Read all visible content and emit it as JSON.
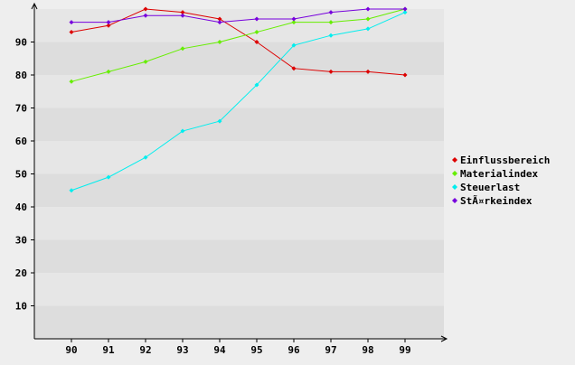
{
  "chart_data": {
    "type": "line",
    "categories": [
      "90",
      "91",
      "92",
      "93",
      "94",
      "95",
      "96",
      "97",
      "98",
      "99"
    ],
    "series": [
      {
        "name": "Einflussbereich",
        "color": "#dd0000",
        "values": [
          93,
          95,
          100,
          99,
          97,
          90,
          82,
          81,
          81,
          80
        ]
      },
      {
        "name": "Materialindex",
        "color": "#66ee00",
        "values": [
          78,
          81,
          84,
          88,
          90,
          93,
          96,
          96,
          97,
          100
        ]
      },
      {
        "name": "Steuerlast",
        "color": "#00eeee",
        "values": [
          45,
          49,
          55,
          63,
          66,
          77,
          89,
          92,
          94,
          99
        ]
      },
      {
        "name": "StÃ¤rkeindex",
        "color": "#7700dd",
        "values": [
          96,
          96,
          98,
          98,
          96,
          97,
          97,
          99,
          100,
          100
        ]
      }
    ],
    "y_ticks": [
      "10",
      "20",
      "30",
      "40",
      "50",
      "60",
      "70",
      "80",
      "90"
    ],
    "ylim": [
      0,
      100
    ],
    "grid": "alternating horizontal bands",
    "legend_position": "right",
    "colors": {
      "background": "#eeeeee",
      "band_dark": "#dddddd",
      "band_light": "#e6e6e6",
      "axis": "#000000"
    }
  }
}
